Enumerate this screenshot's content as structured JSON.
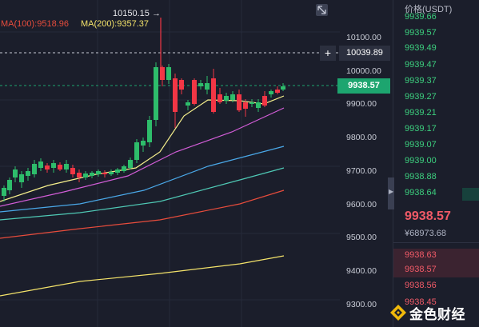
{
  "chart": {
    "ma100_label": "MA(100):9518.96",
    "ma200_label": "MA(200):9357.37",
    "high_label": "10150.15",
    "y_axis": [
      "10100.00",
      "10000.00",
      "9900.00",
      "9800.00",
      "9700.00",
      "9600.00",
      "9500.00",
      "9400.00",
      "9300.00"
    ],
    "crosshair_price": "10039.89",
    "last_price": "9938.57",
    "plus_glyph": "+",
    "colors": {
      "up": "#2ebd6b",
      "down": "#f23645",
      "ma100": "#e74c3c",
      "ma200": "#f4e36a",
      "last_price_tag": "#1da56f"
    }
  },
  "orderbook": {
    "title": "价格(USDT)",
    "asks": [
      "9939.66",
      "9939.57",
      "9939.49",
      "9939.47",
      "9939.37",
      "9939.27",
      "9939.21",
      "9939.17",
      "9939.07",
      "9939.00",
      "9938.88",
      "9938.64"
    ],
    "last_price": "9938.57",
    "last_price_cny": "¥68973.68",
    "bids": [
      "9938.63",
      "9938.57",
      "9938.56",
      "9938.45"
    ]
  },
  "logo": {
    "text": "金色财经"
  }
}
